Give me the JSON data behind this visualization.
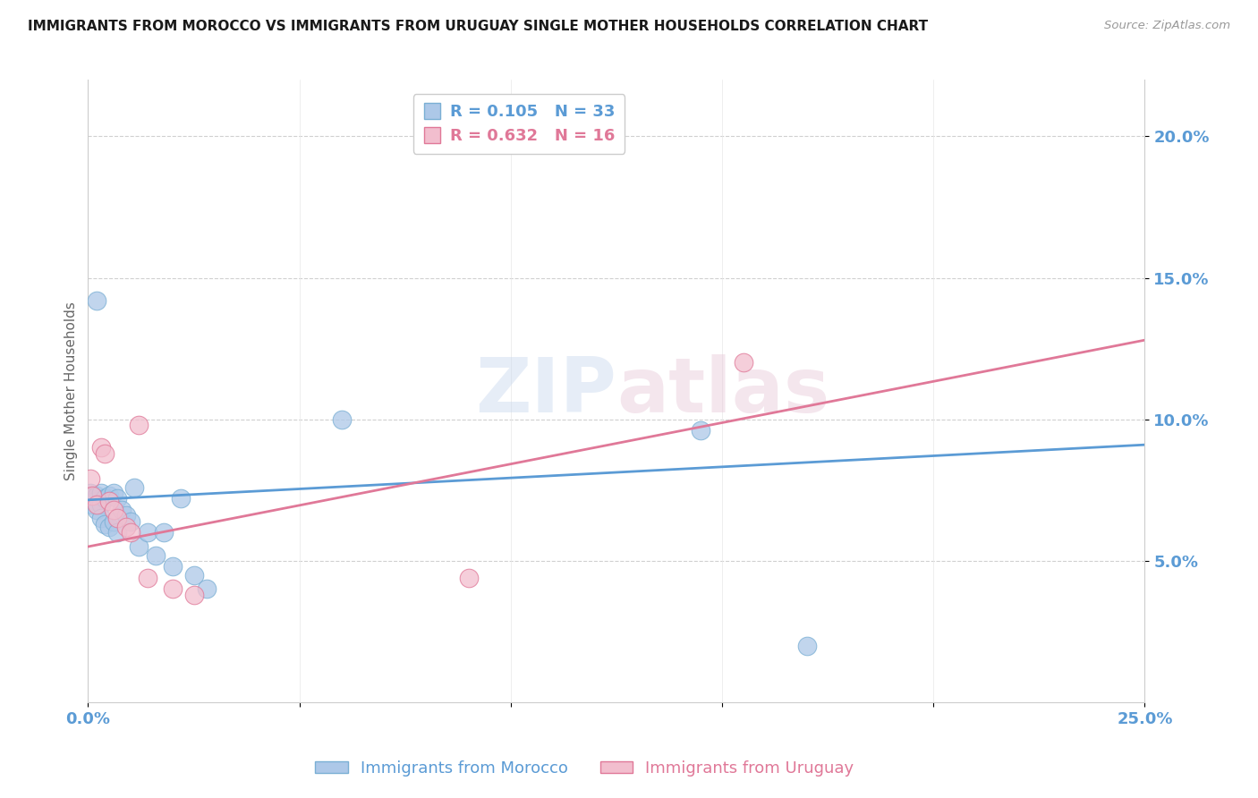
{
  "title": "IMMIGRANTS FROM MOROCCO VS IMMIGRANTS FROM URUGUAY SINGLE MOTHER HOUSEHOLDS CORRELATION CHART",
  "source": "Source: ZipAtlas.com",
  "ylabel": "Single Mother Households",
  "xlim": [
    0.0,
    0.25
  ],
  "ylim": [
    0.0,
    0.22
  ],
  "yticks": [
    0.05,
    0.1,
    0.15,
    0.2
  ],
  "ytick_labels": [
    "5.0%",
    "10.0%",
    "15.0%",
    "20.0%"
  ],
  "watermark_text": "ZIPatlas",
  "morocco_color": "#adc8e8",
  "morocco_edge": "#7aafd4",
  "uruguay_color": "#f2bece",
  "uruguay_edge": "#e07898",
  "morocco_line_color": "#5b9bd5",
  "uruguay_line_color": "#e07898",
  "morocco_R": 0.105,
  "morocco_N": 33,
  "uruguay_R": 0.632,
  "uruguay_N": 16,
  "morocco_x": [
    0.0005,
    0.001,
    0.001,
    0.0015,
    0.002,
    0.002,
    0.002,
    0.003,
    0.003,
    0.003,
    0.004,
    0.004,
    0.005,
    0.005,
    0.006,
    0.006,
    0.007,
    0.007,
    0.008,
    0.009,
    0.01,
    0.011,
    0.012,
    0.014,
    0.016,
    0.018,
    0.02,
    0.022,
    0.025,
    0.028,
    0.06,
    0.145,
    0.17
  ],
  "morocco_y": [
    0.074,
    0.073,
    0.07,
    0.071,
    0.142,
    0.073,
    0.068,
    0.074,
    0.07,
    0.065,
    0.072,
    0.063,
    0.073,
    0.062,
    0.074,
    0.064,
    0.072,
    0.06,
    0.068,
    0.066,
    0.064,
    0.076,
    0.055,
    0.06,
    0.052,
    0.06,
    0.048,
    0.072,
    0.045,
    0.04,
    0.1,
    0.096,
    0.02
  ],
  "uruguay_x": [
    0.0005,
    0.001,
    0.002,
    0.003,
    0.004,
    0.005,
    0.006,
    0.007,
    0.009,
    0.01,
    0.012,
    0.014,
    0.02,
    0.025,
    0.09,
    0.155
  ],
  "uruguay_y": [
    0.079,
    0.073,
    0.07,
    0.09,
    0.088,
    0.071,
    0.068,
    0.065,
    0.062,
    0.06,
    0.098,
    0.044,
    0.04,
    0.038,
    0.044,
    0.12
  ],
  "morocco_line_x0": 0.0,
  "morocco_line_y0": 0.0715,
  "morocco_line_x1": 0.25,
  "morocco_line_y1": 0.091,
  "uruguay_line_x0": 0.0,
  "uruguay_line_y0": 0.055,
  "uruguay_line_x1": 0.25,
  "uruguay_line_y1": 0.128
}
